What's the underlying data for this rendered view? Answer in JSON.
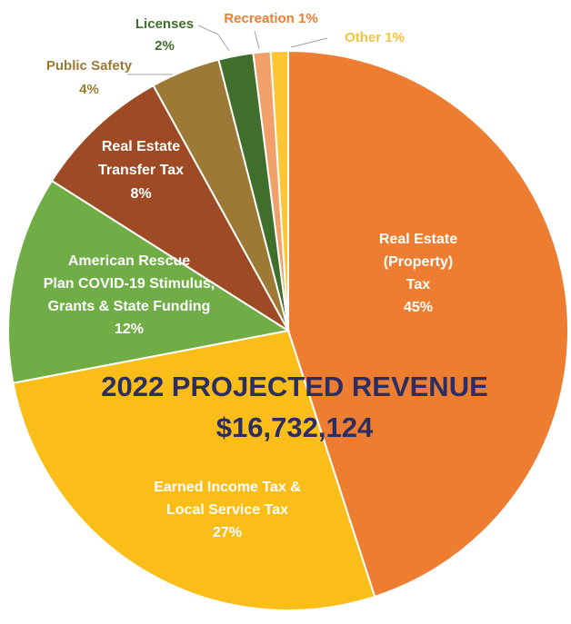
{
  "chart_data": {
    "type": "pie",
    "title": "2022 PROJECTED REVENUE",
    "subtitle": "$16,732,124",
    "slices": [
      {
        "name": "real-estate-property-tax",
        "label_lines": [
          "Real Estate",
          "(Property)",
          "Tax",
          "45%"
        ],
        "value": 45,
        "color": "#ed7d31"
      },
      {
        "name": "earned-income-local-service-tax",
        "label_lines": [
          "Earned Income Tax &",
          "Local Service Tax",
          "27%"
        ],
        "value": 27,
        "color": "#fbbd18"
      },
      {
        "name": "american-rescue-plan",
        "label_lines": [
          "American Rescue",
          "Plan COVID-19 Stimulus,",
          "Grants & State Funding",
          "12%"
        ],
        "value": 12,
        "color": "#70ad47"
      },
      {
        "name": "real-estate-transfer-tax",
        "label_lines": [
          "Real Estate",
          "Transfer Tax",
          "8%"
        ],
        "value": 8,
        "color": "#9e4a24"
      },
      {
        "name": "public-safety",
        "label_lines": [
          "Public Safety",
          "4%"
        ],
        "value": 4,
        "color": "#9c7a35"
      },
      {
        "name": "licenses",
        "label_lines": [
          "Licenses",
          "2%"
        ],
        "value": 2,
        "color": "#3f6e2d"
      },
      {
        "name": "recreation",
        "label_lines": [
          "Recreation 1%"
        ],
        "value": 1,
        "color": "#f2a06a"
      },
      {
        "name": "other",
        "label_lines": [
          "Other 1%"
        ],
        "value": 1,
        "color": "#ffc533"
      }
    ],
    "label_colors": {
      "public-safety": "#9c7a35",
      "licenses": "#3f6e2d",
      "recreation": "#ed7d31",
      "other": "#f6c33a"
    }
  }
}
